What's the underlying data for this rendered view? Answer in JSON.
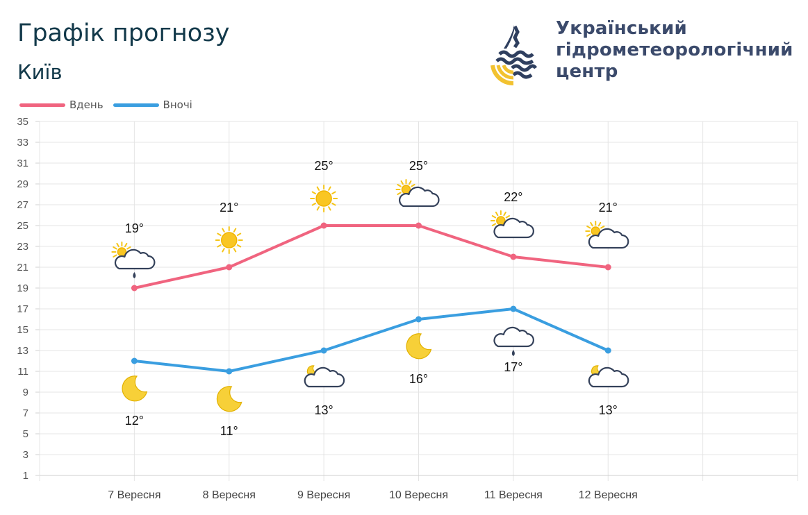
{
  "header": {
    "title": "Графік прогнозу",
    "city": "Київ"
  },
  "organization": {
    "line1": "Український",
    "line2": "гідрометеорологічний",
    "line3": "центр",
    "colors": {
      "text": "#3b4a6b",
      "accent": "#f2c230",
      "mark": "#2f3f5f"
    }
  },
  "legend": {
    "day_label": "Вдень",
    "night_label": "Вночі"
  },
  "chart_data": {
    "type": "line",
    "categories": [
      "7 Вересня",
      "8 Вересня",
      "9 Вересня",
      "10 Вересня",
      "11 Вересня",
      "12 Вересня"
    ],
    "series": [
      {
        "name": "Вдень",
        "color": "#f0647f",
        "values": [
          19,
          21,
          25,
          25,
          22,
          21
        ],
        "labels": [
          "19°",
          "21°",
          "25°",
          "25°",
          "22°",
          "21°"
        ],
        "icons": [
          "sun-cloud-rain-icon",
          "sun-icon",
          "sun-icon",
          "sun-cloud-icon",
          "sun-cloud-icon",
          "sun-cloud-icon"
        ]
      },
      {
        "name": "Вночі",
        "color": "#3a9ee0",
        "values": [
          12,
          11,
          13,
          16,
          17,
          13
        ],
        "labels": [
          "12°",
          "11°",
          "13°",
          "16°",
          "17°",
          "13°"
        ],
        "icons": [
          "moon-icon",
          "moon-icon",
          "moon-cloud-icon",
          "moon-icon",
          "cloud-rain-icon",
          "moon-cloud-icon"
        ]
      }
    ],
    "yticks": [
      1,
      3,
      5,
      7,
      9,
      11,
      13,
      15,
      17,
      19,
      21,
      23,
      25,
      27,
      29,
      31,
      33,
      35
    ],
    "ylim": [
      1,
      35
    ],
    "grid": true,
    "legend_position": "top-left"
  }
}
